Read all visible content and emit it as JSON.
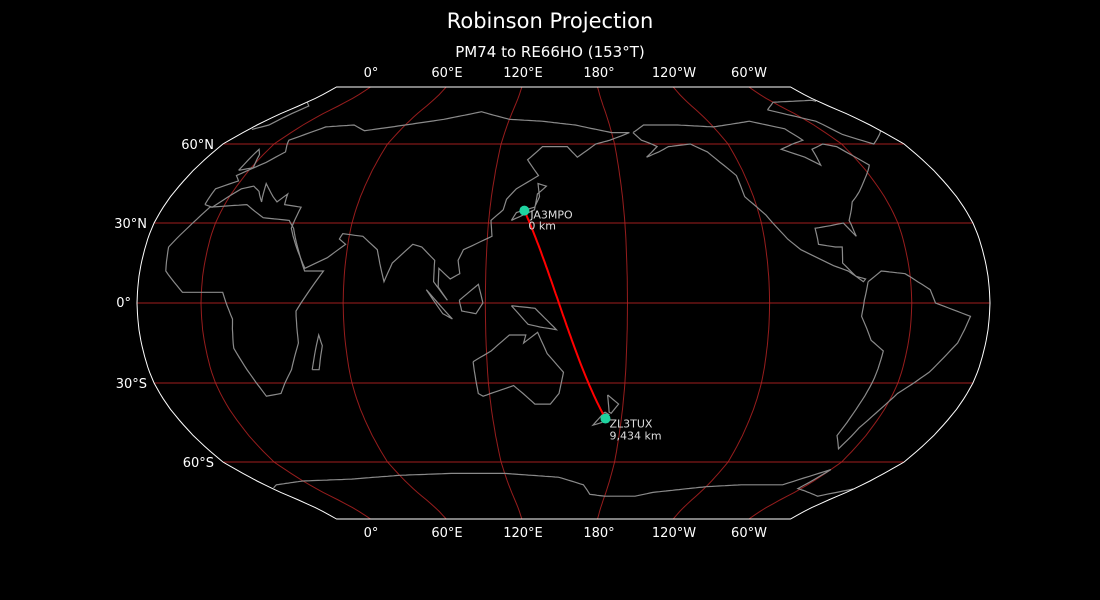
{
  "figure": {
    "title": "Robinson Projection",
    "subtitle": "PM74 to RE66HO (153°T)"
  },
  "axes": {
    "lon_labels": [
      "0°",
      "60°E",
      "120°E",
      "180°",
      "120°W",
      "60°W"
    ],
    "lat_labels": [
      "60°N",
      "30°N",
      "0°",
      "30°S",
      "60°S"
    ]
  },
  "path": {
    "start": {
      "call": "JA3MPO",
      "distance": "0 km"
    },
    "end": {
      "call": "ZL3TUX",
      "distance": "9,434 km"
    }
  },
  "colors": {
    "background": "#000000",
    "coastline": "#8a8a8a",
    "graticule": "#b22222",
    "path": "#ff0000",
    "station": "#1fd3a0",
    "outline": "#ffffff"
  }
}
